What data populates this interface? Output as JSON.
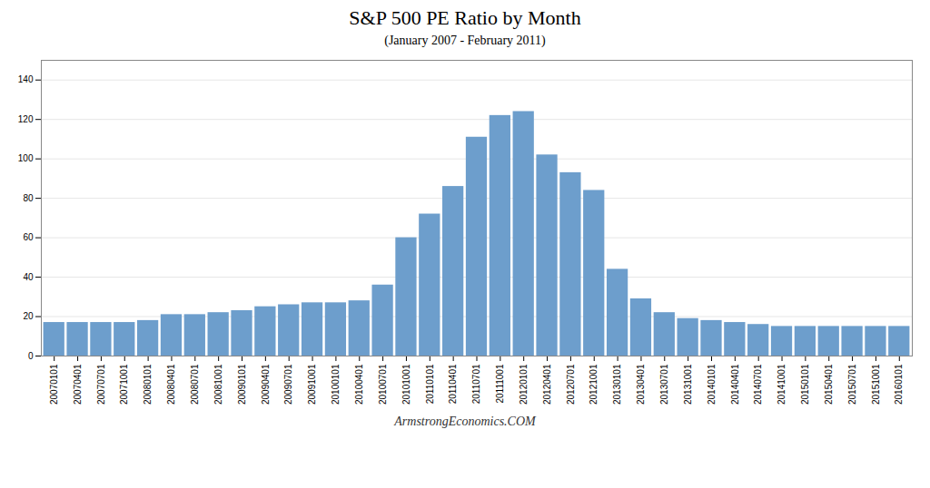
{
  "chart_data": {
    "type": "bar",
    "title": "S&P 500 PE Ratio by Month",
    "subtitle": "(January 2007 - February 2011)",
    "annotations": [
      "ArmstrongEconomics.COM"
    ],
    "categories": [
      "20070101",
      "20070401",
      "20070701",
      "20071001",
      "20080101",
      "20080401",
      "20080701",
      "20081001",
      "20090101",
      "20090401",
      "20090701",
      "20091001",
      "20100101",
      "20100401",
      "20100701",
      "20101001",
      "20110101",
      "20110401",
      "20110701",
      "20111001",
      "20120101",
      "20120401",
      "20120701",
      "20121001",
      "20130101",
      "20130401",
      "20130701",
      "20131001",
      "20140101",
      "20140401",
      "20140701",
      "20141001",
      "20150101",
      "20150401",
      "20150701",
      "20151001",
      "20160101"
    ],
    "values": [
      17,
      17,
      17,
      17,
      18,
      21,
      21,
      22,
      23,
      25,
      26,
      27,
      27,
      28,
      36,
      60,
      72,
      86,
      111,
      122,
      124,
      102,
      93,
      84,
      44,
      29,
      22,
      19,
      18,
      17,
      16,
      15,
      15,
      15,
      15,
      15,
      15
    ],
    "color": "#6d9ecc",
    "ylim": [
      0,
      150
    ],
    "yticks": [
      0,
      20,
      40,
      60,
      80,
      100,
      120,
      140
    ],
    "grid": true
  }
}
